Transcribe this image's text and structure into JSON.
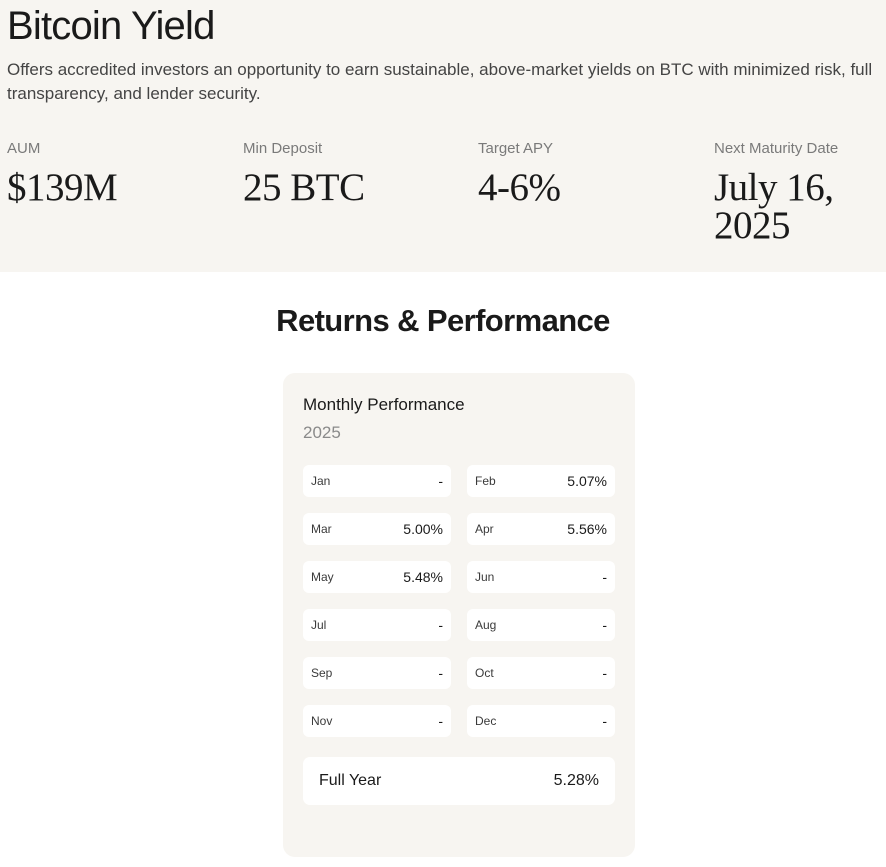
{
  "header": {
    "title": "Bitcoin Yield",
    "description": "Offers accredited investors an opportunity to earn sustainable, above-market yields on BTC with minimized risk, full transparency, and lender security."
  },
  "stats": [
    {
      "label": "AUM",
      "value": "$139M"
    },
    {
      "label": "Min Deposit",
      "value": "25 BTC"
    },
    {
      "label": "Target APY",
      "value": "4-6%"
    },
    {
      "label": "Next Maturity Date",
      "value": "July 16, 2025"
    }
  ],
  "section": {
    "title": "Returns & Performance"
  },
  "performance": {
    "title": "Monthly Performance",
    "year": "2025",
    "months": [
      {
        "month": "Jan",
        "value": "-"
      },
      {
        "month": "Feb",
        "value": "5.07%"
      },
      {
        "month": "Mar",
        "value": "5.00%"
      },
      {
        "month": "Apr",
        "value": "5.56%"
      },
      {
        "month": "May",
        "value": "5.48%"
      },
      {
        "month": "Jun",
        "value": "-"
      },
      {
        "month": "Jul",
        "value": "-"
      },
      {
        "month": "Aug",
        "value": "-"
      },
      {
        "month": "Sep",
        "value": "-"
      },
      {
        "month": "Oct",
        "value": "-"
      },
      {
        "month": "Nov",
        "value": "-"
      },
      {
        "month": "Dec",
        "value": "-"
      }
    ],
    "full_year": {
      "label": "Full Year",
      "value": "5.28%"
    }
  }
}
